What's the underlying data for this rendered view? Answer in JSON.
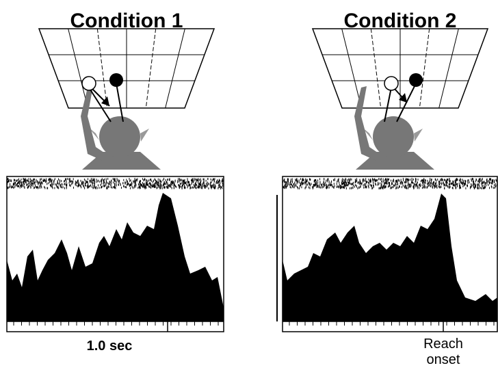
{
  "panels": [
    {
      "title": "Condition 1",
      "time_label": "1.0 sec"
    },
    {
      "title": "Condition 2",
      "event_label": [
        "Reach",
        "onset"
      ]
    }
  ]
}
